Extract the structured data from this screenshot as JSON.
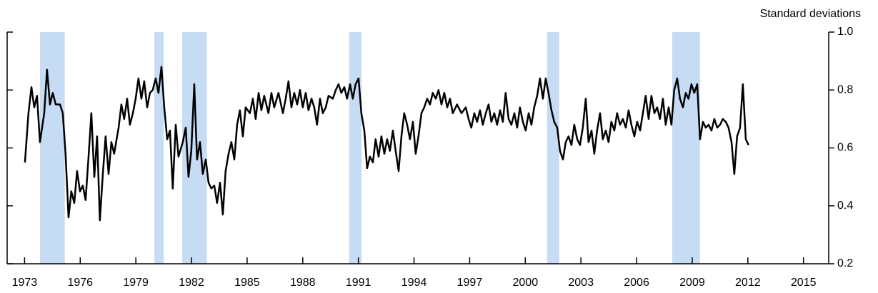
{
  "chart_data": {
    "type": "line",
    "title": "Standard deviations",
    "color": "#000000",
    "recession_color": "#c6dcf5",
    "recessions": [
      [
        1973.83,
        1975.17
      ],
      [
        1980.0,
        1980.5
      ],
      [
        1981.5,
        1982.83
      ],
      [
        1990.5,
        1991.17
      ],
      [
        2001.17,
        2001.83
      ],
      [
        2007.92,
        2009.42
      ]
    ],
    "xlim": [
      1972.06,
      2016.36
    ],
    "xticks": [
      1973,
      1976,
      1979,
      1982,
      1985,
      1988,
      1991,
      1994,
      1997,
      2000,
      2003,
      2006,
      2009,
      2012,
      2015
    ],
    "ylim": [
      0.2,
      1.0
    ],
    "yticks": [
      0.2,
      0.4,
      0.6,
      0.8,
      {
        "value": 1.0,
        "label": "1.0"
      }
    ],
    "x": [
      1973.02,
      1973.21,
      1973.37,
      1973.52,
      1973.67,
      1973.83,
      1974.06,
      1974.21,
      1974.37,
      1974.52,
      1974.68,
      1974.91,
      1975.06,
      1975.21,
      1975.37,
      1975.52,
      1975.68,
      1975.83,
      1975.99,
      1976.14,
      1976.29,
      1976.45,
      1976.6,
      1976.76,
      1976.91,
      1977.06,
      1977.22,
      1977.37,
      1977.53,
      1977.68,
      1977.83,
      1978.07,
      1978.22,
      1978.37,
      1978.53,
      1978.68,
      1978.84,
      1978.99,
      1979.14,
      1979.3,
      1979.45,
      1979.61,
      1979.76,
      1979.91,
      1980.07,
      1980.22,
      1980.38,
      1980.53,
      1980.69,
      1980.84,
      1980.99,
      1981.15,
      1981.3,
      1981.53,
      1981.69,
      1981.84,
      1981.99,
      1982.15,
      1982.3,
      1982.46,
      1982.61,
      1982.77,
      1982.92,
      1983.07,
      1983.23,
      1983.38,
      1983.54,
      1983.69,
      1983.84,
      1984.0,
      1984.15,
      1984.31,
      1984.46,
      1984.61,
      1984.77,
      1984.92,
      1985.15,
      1985.31,
      1985.46,
      1985.62,
      1985.77,
      1985.92,
      1986.15,
      1986.31,
      1986.46,
      1986.69,
      1986.93,
      1987.08,
      1987.23,
      1987.39,
      1987.54,
      1987.7,
      1987.85,
      1988.0,
      1988.16,
      1988.31,
      1988.47,
      1988.62,
      1988.77,
      1988.93,
      1989.08,
      1989.24,
      1989.39,
      1989.62,
      1989.78,
      1989.93,
      1990.08,
      1990.24,
      1990.39,
      1990.55,
      1990.7,
      1990.85,
      1991.01,
      1991.16,
      1991.32,
      1991.47,
      1991.62,
      1991.78,
      1991.93,
      1992.09,
      1992.24,
      1992.4,
      1992.55,
      1992.7,
      1992.86,
      1993.01,
      1993.17,
      1993.32,
      1993.47,
      1993.63,
      1993.78,
      1993.94,
      1994.09,
      1994.24,
      1994.4,
      1994.55,
      1994.71,
      1994.86,
      1995.01,
      1995.17,
      1995.32,
      1995.48,
      1995.63,
      1995.79,
      1995.94,
      1996.09,
      1996.32,
      1996.56,
      1996.79,
      1996.94,
      1997.09,
      1997.25,
      1997.4,
      1997.56,
      1997.71,
      1997.87,
      1998.02,
      1998.17,
      1998.33,
      1998.48,
      1998.64,
      1998.79,
      1998.94,
      1999.1,
      1999.25,
      1999.41,
      1999.56,
      1999.71,
      1999.87,
      2000.02,
      2000.18,
      2000.33,
      2000.48,
      2000.64,
      2000.79,
      2000.95,
      2001.1,
      2001.25,
      2001.41,
      2001.56,
      2001.72,
      2001.87,
      2002.03,
      2002.18,
      2002.33,
      2002.49,
      2002.64,
      2002.8,
      2002.95,
      2003.1,
      2003.26,
      2003.41,
      2003.57,
      2003.72,
      2003.87,
      2004.03,
      2004.18,
      2004.34,
      2004.49,
      2004.64,
      2004.8,
      2004.95,
      2005.11,
      2005.26,
      2005.42,
      2005.57,
      2005.72,
      2005.88,
      2006.03,
      2006.19,
      2006.34,
      2006.49,
      2006.65,
      2006.8,
      2006.96,
      2007.11,
      2007.26,
      2007.42,
      2007.57,
      2007.73,
      2007.88,
      2008.03,
      2008.19,
      2008.34,
      2008.5,
      2008.65,
      2008.8,
      2008.96,
      2009.11,
      2009.27,
      2009.42,
      2009.58,
      2009.73,
      2009.88,
      2010.04,
      2010.19,
      2010.35,
      2010.5,
      2010.65,
      2010.81,
      2010.96,
      2011.12,
      2011.27,
      2011.42,
      2011.58,
      2011.73,
      2011.89,
      2012.04
    ],
    "values": [
      0.55,
      0.72,
      0.81,
      0.74,
      0.78,
      0.62,
      0.72,
      0.87,
      0.75,
      0.79,
      0.75,
      0.75,
      0.72,
      0.58,
      0.36,
      0.45,
      0.41,
      0.52,
      0.45,
      0.47,
      0.42,
      0.57,
      0.72,
      0.5,
      0.64,
      0.35,
      0.51,
      0.64,
      0.51,
      0.62,
      0.58,
      0.67,
      0.75,
      0.7,
      0.77,
      0.68,
      0.72,
      0.77,
      0.84,
      0.77,
      0.83,
      0.74,
      0.79,
      0.8,
      0.84,
      0.79,
      0.88,
      0.74,
      0.63,
      0.66,
      0.46,
      0.68,
      0.57,
      0.62,
      0.67,
      0.5,
      0.59,
      0.82,
      0.56,
      0.62,
      0.51,
      0.56,
      0.48,
      0.46,
      0.47,
      0.41,
      0.48,
      0.37,
      0.52,
      0.58,
      0.62,
      0.56,
      0.68,
      0.73,
      0.64,
      0.74,
      0.72,
      0.77,
      0.7,
      0.79,
      0.73,
      0.78,
      0.72,
      0.79,
      0.74,
      0.79,
      0.72,
      0.77,
      0.83,
      0.74,
      0.79,
      0.75,
      0.8,
      0.74,
      0.79,
      0.73,
      0.77,
      0.74,
      0.68,
      0.77,
      0.72,
      0.74,
      0.78,
      0.77,
      0.8,
      0.82,
      0.79,
      0.81,
      0.77,
      0.82,
      0.77,
      0.82,
      0.84,
      0.72,
      0.66,
      0.53,
      0.57,
      0.55,
      0.63,
      0.57,
      0.64,
      0.58,
      0.63,
      0.59,
      0.66,
      0.59,
      0.52,
      0.64,
      0.72,
      0.68,
      0.63,
      0.69,
      0.58,
      0.64,
      0.72,
      0.74,
      0.77,
      0.75,
      0.79,
      0.77,
      0.8,
      0.75,
      0.79,
      0.74,
      0.77,
      0.72,
      0.75,
      0.72,
      0.74,
      0.7,
      0.67,
      0.72,
      0.69,
      0.73,
      0.68,
      0.72,
      0.75,
      0.69,
      0.72,
      0.68,
      0.73,
      0.69,
      0.79,
      0.7,
      0.68,
      0.72,
      0.67,
      0.74,
      0.69,
      0.66,
      0.72,
      0.68,
      0.74,
      0.78,
      0.84,
      0.77,
      0.84,
      0.79,
      0.73,
      0.69,
      0.67,
      0.59,
      0.56,
      0.62,
      0.64,
      0.61,
      0.68,
      0.63,
      0.61,
      0.67,
      0.77,
      0.62,
      0.66,
      0.58,
      0.66,
      0.72,
      0.63,
      0.66,
      0.62,
      0.69,
      0.66,
      0.72,
      0.68,
      0.7,
      0.67,
      0.73,
      0.68,
      0.64,
      0.69,
      0.66,
      0.72,
      0.78,
      0.7,
      0.78,
      0.72,
      0.74,
      0.7,
      0.77,
      0.68,
      0.74,
      0.68,
      0.8,
      0.84,
      0.77,
      0.74,
      0.79,
      0.77,
      0.82,
      0.79,
      0.82,
      0.63,
      0.69,
      0.67,
      0.68,
      0.66,
      0.7,
      0.67,
      0.68,
      0.7,
      0.69,
      0.67,
      0.62,
      0.51,
      0.64,
      0.67,
      0.82,
      0.63,
      0.61
    ]
  }
}
